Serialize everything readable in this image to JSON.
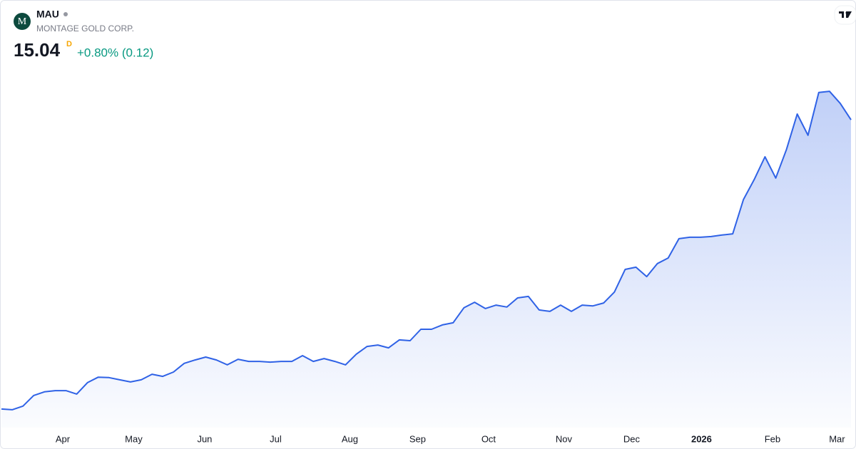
{
  "chart_data": {
    "type": "area",
    "logo": "M",
    "title": "MAU",
    "subtitle": "MONTAGE GOLD CORP.",
    "price": 15.04,
    "interval": "D",
    "change": "+0.80% (0.12)",
    "series": [
      {
        "color": "#2f62e6",
        "values": [
          3.07,
          3.04,
          3.19,
          3.63,
          3.78,
          3.83,
          3.83,
          3.69,
          4.16,
          4.39,
          4.37,
          4.28,
          4.19,
          4.28,
          4.51,
          4.42,
          4.6,
          4.96,
          5.1,
          5.22,
          5.1,
          4.9,
          5.13,
          5.04,
          5.04,
          5.01,
          5.04,
          5.04,
          5.28,
          5.04,
          5.16,
          5.04,
          4.9,
          5.34,
          5.66,
          5.72,
          5.6,
          5.93,
          5.9,
          6.37,
          6.37,
          6.55,
          6.64,
          7.26,
          7.49,
          7.23,
          7.37,
          7.29,
          7.67,
          7.73,
          7.17,
          7.11,
          7.37,
          7.11,
          7.37,
          7.34,
          7.46,
          7.91,
          8.85,
          8.94,
          8.55,
          9.09,
          9.32,
          10.12,
          10.18,
          10.18,
          10.21,
          10.27,
          10.32,
          11.74,
          12.57,
          13.51,
          12.63,
          13.81,
          15.28,
          14.4,
          16.17,
          16.22,
          15.72,
          15.04
        ]
      }
    ],
    "xlim": [
      0,
      79
    ],
    "ylim": [
      2.3,
      20
    ],
    "xticks": [
      {
        "value": 5.7,
        "label": "Apr"
      },
      {
        "value": 12.3,
        "label": "May"
      },
      {
        "value": 18.9,
        "label": "Jun"
      },
      {
        "value": 25.5,
        "label": "Jul"
      },
      {
        "value": 32.4,
        "label": "Aug"
      },
      {
        "value": 38.7,
        "label": "Sep"
      },
      {
        "value": 45.3,
        "label": "Oct"
      },
      {
        "value": 52.3,
        "label": "Nov"
      },
      {
        "value": 58.6,
        "label": "Dec"
      },
      {
        "value": 65.1,
        "label": "2026"
      },
      {
        "value": 71.7,
        "label": "Feb"
      },
      {
        "value": 77.7,
        "label": "Mar"
      }
    ]
  }
}
